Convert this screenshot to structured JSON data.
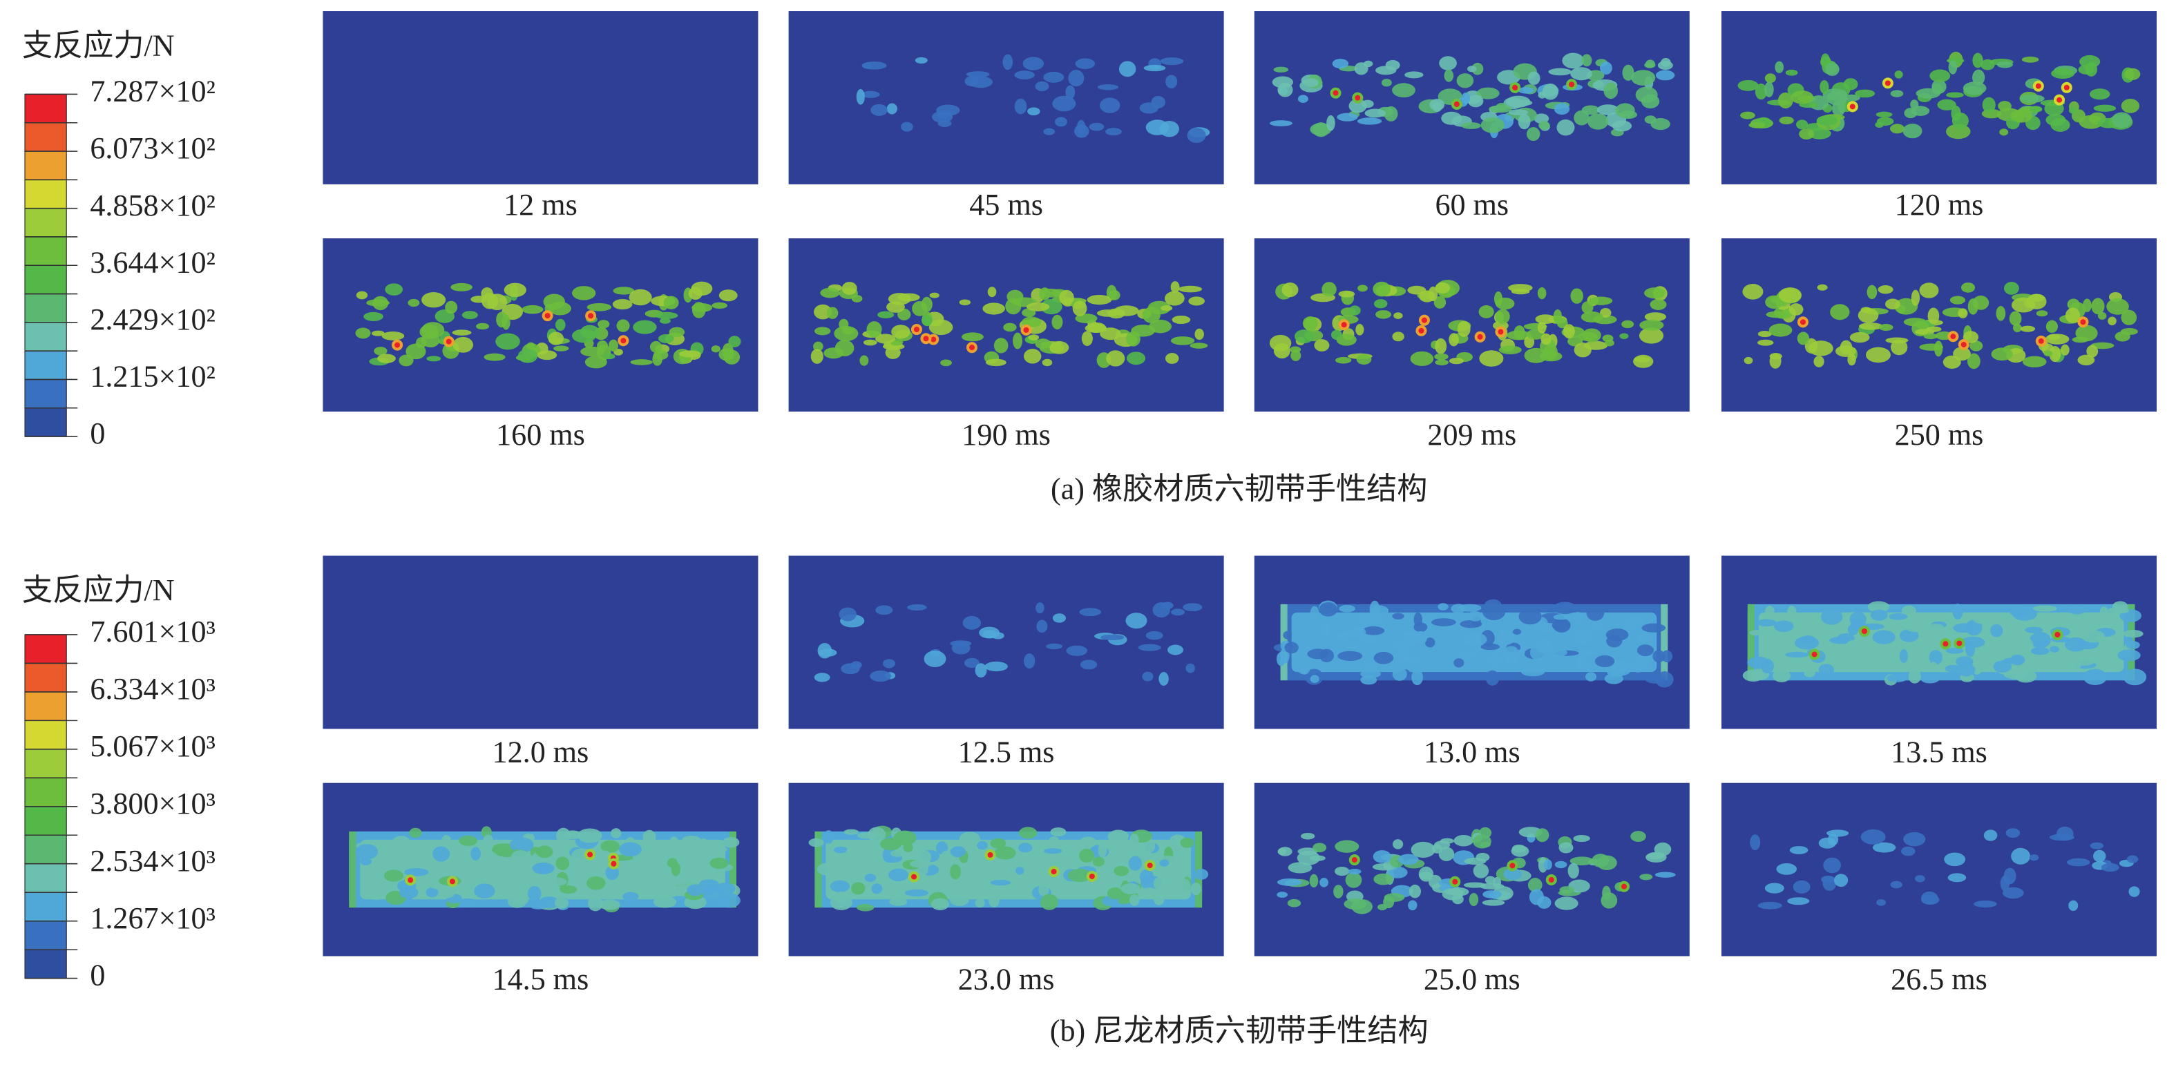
{
  "panels": [
    {
      "legend": {
        "title": "支反应力/N",
        "labels": [
          "7.287×10²",
          "6.073×10²",
          "4.858×10²",
          "3.644×10²",
          "2.429×10²",
          "1.215×10²",
          "0"
        ]
      },
      "frames": [
        {
          "time": "12 ms"
        },
        {
          "time": "45 ms"
        },
        {
          "time": "60 ms"
        },
        {
          "time": "120 ms"
        },
        {
          "time": "160 ms"
        },
        {
          "time": "190 ms"
        },
        {
          "time": "209 ms"
        },
        {
          "time": "250 ms"
        }
      ],
      "caption": "(a) 橡胶材质六韧带手性结构"
    },
    {
      "legend": {
        "title": "支反应力/N",
        "labels": [
          "7.601×10³",
          "6.334×10³",
          "5.067×10³",
          "3.800×10³",
          "2.534×10³",
          "1.267×10³",
          "0"
        ]
      },
      "frames": [
        {
          "time": "12.0 ms"
        },
        {
          "time": "12.5 ms"
        },
        {
          "time": "13.0 ms"
        },
        {
          "time": "13.5 ms"
        },
        {
          "time": "14.5 ms"
        },
        {
          "time": "23.0 ms"
        },
        {
          "time": "25.0 ms"
        },
        {
          "time": "26.5 ms"
        }
      ],
      "caption": "(b) 尼龙材质六韧带手性结构"
    }
  ]
}
